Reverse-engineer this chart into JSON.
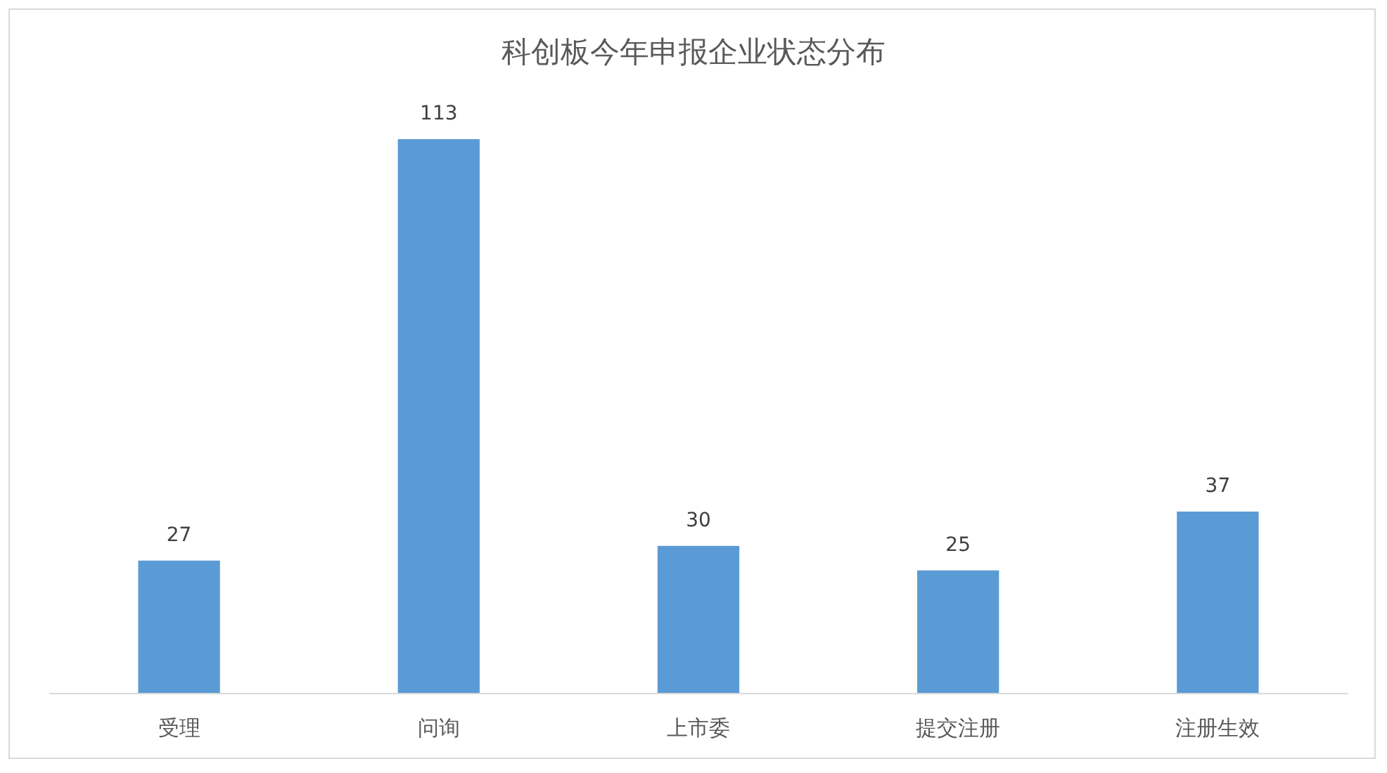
{
  "chart_data": {
    "type": "bar",
    "title": "科创板今年申报企业状态分布",
    "categories": [
      "受理",
      "问询",
      "上市委",
      "提交注册",
      "注册生效"
    ],
    "values": [
      27,
      113,
      30,
      25,
      37
    ],
    "color": "#5b9bd5",
    "data_labels": true
  }
}
